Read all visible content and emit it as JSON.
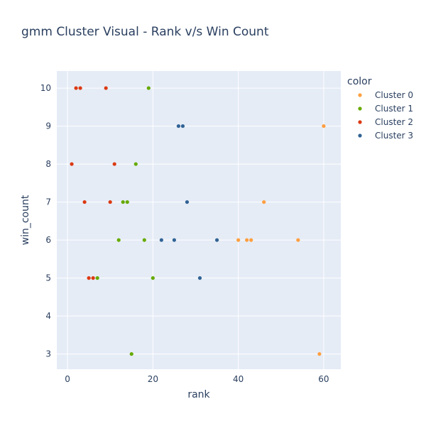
{
  "chart_data": {
    "type": "scatter",
    "title": "gmm Cluster Visual - Rank v/s Win Count",
    "xlabel": "rank",
    "ylabel": "win_count",
    "legend_title": "color",
    "legend_position": "right",
    "xlim": [
      -2.5,
      64
    ],
    "ylim": [
      2.6,
      10.45
    ],
    "x_ticks": [
      0,
      20,
      40,
      60
    ],
    "y_ticks": [
      3,
      4,
      5,
      6,
      7,
      8,
      9,
      10
    ],
    "grid": true,
    "plot_background": "#e5ecf6",
    "series": [
      {
        "name": "Cluster 0",
        "color": "#ff9f40",
        "points": [
          {
            "x": 40,
            "y": 6
          },
          {
            "x": 42,
            "y": 6
          },
          {
            "x": 43,
            "y": 6
          },
          {
            "x": 46,
            "y": 7
          },
          {
            "x": 54,
            "y": 6
          },
          {
            "x": 59,
            "y": 3
          },
          {
            "x": 60,
            "y": 9
          }
        ]
      },
      {
        "name": "Cluster 1",
        "color": "#66aa00",
        "points": [
          {
            "x": 7,
            "y": 5
          },
          {
            "x": 12,
            "y": 6
          },
          {
            "x": 13,
            "y": 7
          },
          {
            "x": 14,
            "y": 7
          },
          {
            "x": 15,
            "y": 3
          },
          {
            "x": 16,
            "y": 8
          },
          {
            "x": 18,
            "y": 6
          },
          {
            "x": 19,
            "y": 10
          },
          {
            "x": 20,
            "y": 5
          }
        ]
      },
      {
        "name": "Cluster 2",
        "color": "#dc3912",
        "points": [
          {
            "x": 1,
            "y": 8
          },
          {
            "x": 2,
            "y": 10
          },
          {
            "x": 3,
            "y": 10
          },
          {
            "x": 4,
            "y": 7
          },
          {
            "x": 5,
            "y": 5
          },
          {
            "x": 6,
            "y": 5
          },
          {
            "x": 9,
            "y": 10
          },
          {
            "x": 10,
            "y": 7
          },
          {
            "x": 11,
            "y": 8
          }
        ]
      },
      {
        "name": "Cluster 3",
        "color": "#316395",
        "points": [
          {
            "x": 22,
            "y": 6
          },
          {
            "x": 25,
            "y": 6
          },
          {
            "x": 26,
            "y": 9
          },
          {
            "x": 27,
            "y": 9
          },
          {
            "x": 28,
            "y": 7
          },
          {
            "x": 31,
            "y": 5
          },
          {
            "x": 35,
            "y": 6
          }
        ]
      }
    ]
  }
}
